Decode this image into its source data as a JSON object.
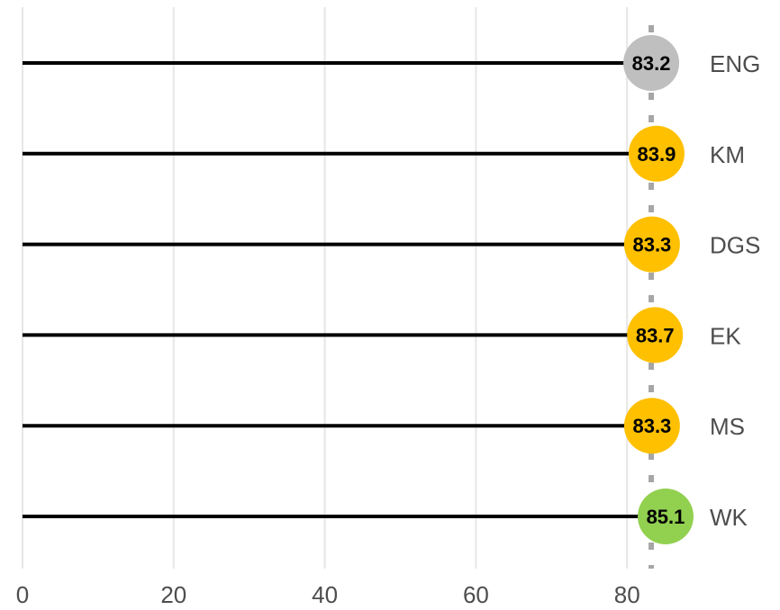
{
  "chart_data": {
    "type": "lollipop",
    "categories": [
      "ENG",
      "KM",
      "DGS",
      "EK",
      "MS",
      "WK"
    ],
    "values": [
      83.2,
      83.9,
      83.3,
      83.7,
      83.3,
      85.1
    ],
    "value_labels": [
      "83.2",
      "83.9",
      "83.3",
      "83.7",
      "83.3",
      "85.1"
    ],
    "point_colors": [
      "#bfbfbf",
      "#ffc000",
      "#ffc000",
      "#ffc000",
      "#ffc000",
      "#92d050"
    ],
    "reference_value": 83.2,
    "reference_style": "dotted vertical line",
    "xlim": [
      0,
      90
    ],
    "x_ticks": [
      0,
      20,
      40,
      60,
      80
    ],
    "x_tick_labels": [
      "0",
      "20",
      "40",
      "60",
      "80"
    ],
    "title": "",
    "xlabel": "",
    "ylabel": "",
    "grid": "vertical",
    "legend": "none"
  },
  "colors": {
    "stem": "#000000",
    "grid": "#e6e6e6",
    "reference": "#a6a6a6",
    "label_text": "#4d4d4d"
  }
}
